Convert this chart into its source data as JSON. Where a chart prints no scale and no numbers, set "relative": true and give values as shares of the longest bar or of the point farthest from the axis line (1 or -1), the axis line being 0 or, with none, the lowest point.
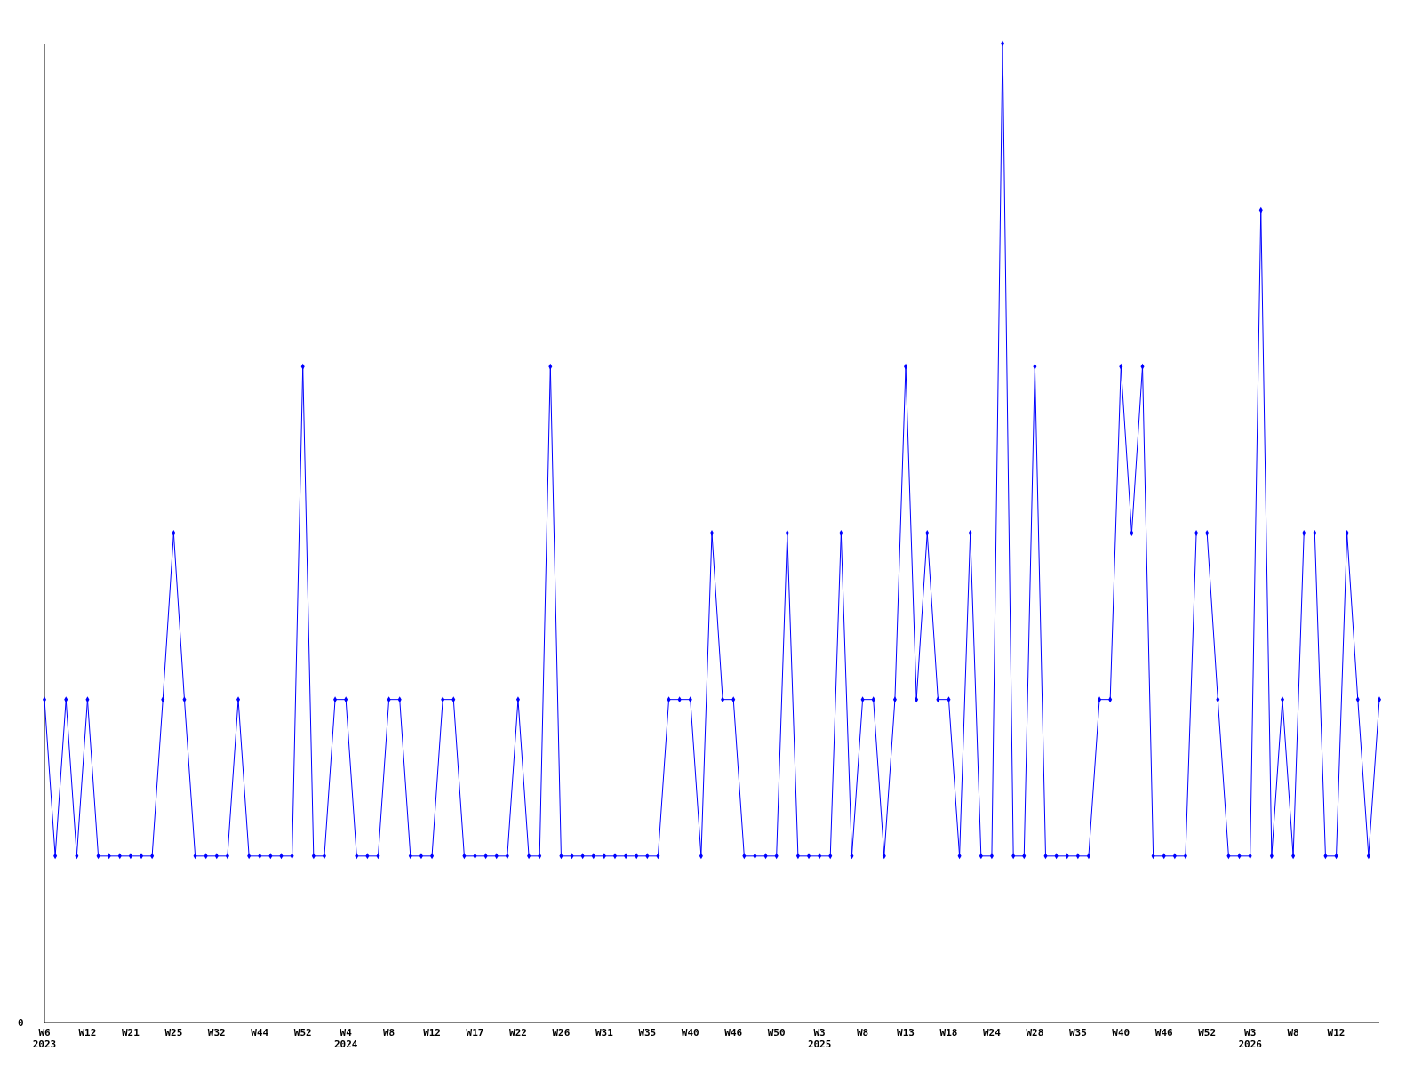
{
  "chart_data": {
    "type": "line",
    "relative": true,
    "marker": "diamond",
    "categories": [
      "W6\n2023",
      null,
      null,
      null,
      "W12",
      null,
      null,
      null,
      "W21",
      null,
      null,
      null,
      "W25",
      null,
      null,
      null,
      "W32",
      null,
      null,
      null,
      "W44",
      null,
      null,
      null,
      "W52",
      null,
      null,
      null,
      "W4\n2024",
      null,
      null,
      null,
      "W8",
      null,
      null,
      null,
      "W12",
      null,
      null,
      null,
      "W17",
      null,
      null,
      null,
      "W22",
      null,
      null,
      null,
      "W26",
      null,
      null,
      null,
      "W31",
      null,
      null,
      null,
      "W35",
      null,
      null,
      null,
      "W40",
      null,
      null,
      null,
      "W46",
      null,
      null,
      null,
      "W50",
      null,
      null,
      null,
      "W3\n2025",
      null,
      null,
      null,
      "W8",
      null,
      null,
      null,
      "W13",
      null,
      null,
      null,
      "W18",
      null,
      null,
      null,
      "W24",
      null,
      null,
      null,
      "W28",
      null,
      null,
      null,
      "W35",
      null,
      null,
      null,
      "W40",
      null,
      null,
      null,
      "W46",
      null,
      null,
      null,
      "W52",
      null,
      null,
      null,
      "W3\n2026",
      null,
      null,
      null,
      "W8",
      null,
      null,
      null,
      "W12",
      null,
      null,
      null,
      null
    ],
    "series": [
      {
        "color": "#0000ff",
        "values": [
          0.33,
          0.17,
          0.33,
          0.17,
          0.33,
          0.17,
          0.17,
          0.17,
          0.17,
          0.17,
          0.17,
          0.33,
          0.5,
          0.33,
          0.17,
          0.17,
          0.17,
          0.17,
          0.33,
          0.17,
          0.17,
          0.17,
          0.17,
          0.17,
          0.67,
          0.17,
          0.17,
          0.33,
          0.33,
          0.17,
          0.17,
          0.17,
          0.33,
          0.33,
          0.17,
          0.17,
          0.17,
          0.33,
          0.33,
          0.17,
          0.17,
          0.17,
          0.17,
          0.17,
          0.33,
          0.17,
          0.17,
          0.67,
          0.17,
          0.17,
          0.17,
          0.17,
          0.17,
          0.17,
          0.17,
          0.17,
          0.17,
          0.17,
          0.33,
          0.33,
          0.33,
          0.17,
          0.5,
          0.33,
          0.33,
          0.17,
          0.17,
          0.17,
          0.17,
          0.5,
          0.17,
          0.17,
          0.17,
          0.17,
          0.5,
          0.17,
          0.33,
          0.33,
          0.17,
          0.33,
          0.67,
          0.33,
          0.5,
          0.33,
          0.33,
          0.17,
          0.5,
          0.17,
          0.17,
          1,
          0.17,
          0.17,
          0.67,
          0.17,
          0.17,
          0.17,
          0.17,
          0.17,
          0.33,
          0.33,
          0.67,
          0.5,
          0.67,
          0.17,
          0.17,
          0.17,
          0.17,
          0.5,
          0.5,
          0.33,
          0.17,
          0.17,
          0.17,
          0.83,
          0.17,
          0.33,
          0.17,
          0.5,
          0.5,
          0.17,
          0.17,
          0.5,
          0.33,
          0.17,
          0.33
        ]
      }
    ],
    "annotations": [
      "0"
    ]
  }
}
